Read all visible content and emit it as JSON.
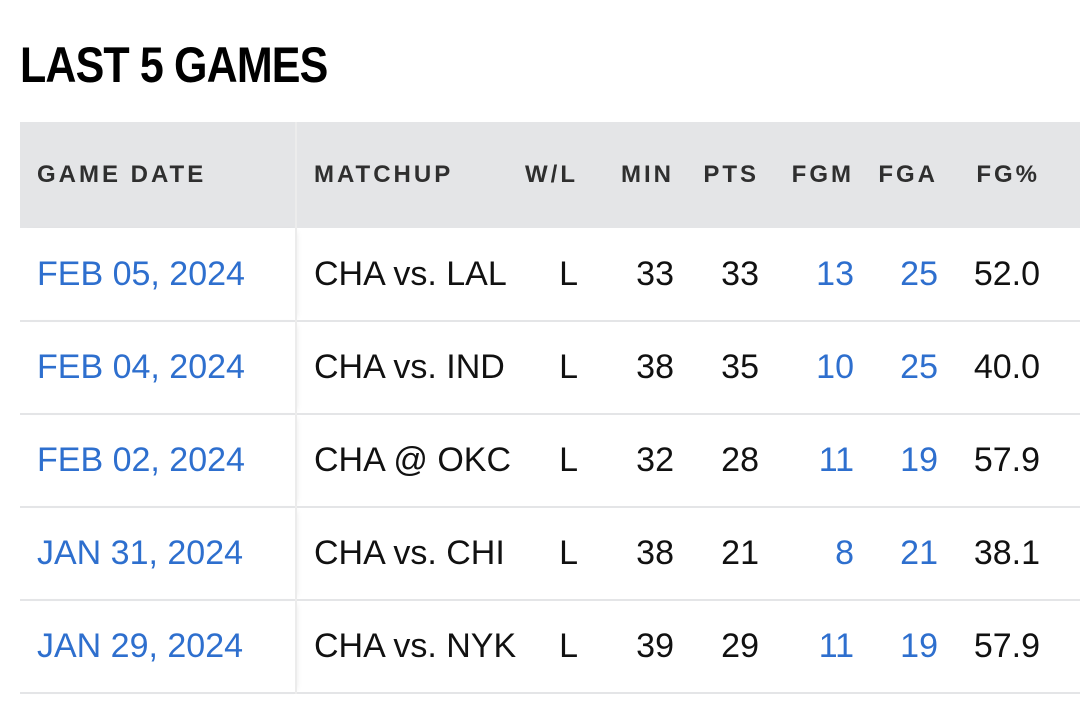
{
  "title": "LAST 5 GAMES",
  "colors": {
    "link_blue": "#2e6fce",
    "header_bg": "#e4e5e7",
    "text": "#111111"
  },
  "headers": {
    "game_date": "GAME DATE",
    "matchup": "MATCHUP",
    "wl": "W/L",
    "min": "MIN",
    "pts": "PTS",
    "fgm": "FGM",
    "fga": "FGA",
    "fg_pct": "FG%"
  },
  "rows": [
    {
      "game_date": "FEB 05, 2024",
      "matchup": "CHA vs. LAL",
      "wl": "L",
      "min": "33",
      "pts": "33",
      "fgm": "13",
      "fga": "25",
      "fg_pct": "52.0"
    },
    {
      "game_date": "FEB 04, 2024",
      "matchup": "CHA vs. IND",
      "wl": "L",
      "min": "38",
      "pts": "35",
      "fgm": "10",
      "fga": "25",
      "fg_pct": "40.0"
    },
    {
      "game_date": "FEB 02, 2024",
      "matchup": "CHA @ OKC",
      "wl": "L",
      "min": "32",
      "pts": "28",
      "fgm": "11",
      "fga": "19",
      "fg_pct": "57.9"
    },
    {
      "game_date": "JAN 31, 2024",
      "matchup": "CHA vs. CHI",
      "wl": "L",
      "min": "38",
      "pts": "21",
      "fgm": "8",
      "fga": "21",
      "fg_pct": "38.1"
    },
    {
      "game_date": "JAN 29, 2024",
      "matchup": "CHA vs. NYK",
      "wl": "L",
      "min": "39",
      "pts": "29",
      "fgm": "11",
      "fga": "19",
      "fg_pct": "57.9"
    }
  ]
}
